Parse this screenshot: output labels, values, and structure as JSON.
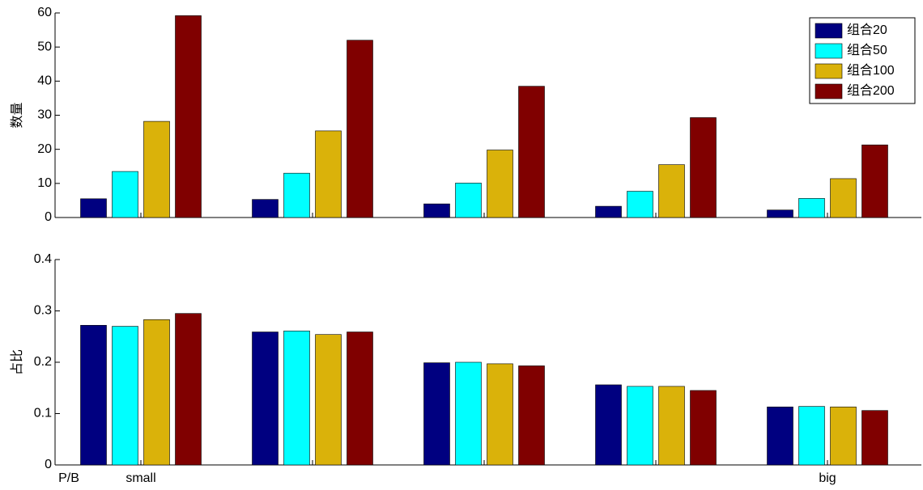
{
  "chart_data": [
    {
      "type": "bar",
      "ylabel": "数量",
      "categories": [
        null,
        null,
        null,
        null,
        null
      ],
      "series": [
        {
          "name": "组合20",
          "color": "#000080",
          "values": [
            5.5,
            5.3,
            4.0,
            3.3,
            2.2
          ]
        },
        {
          "name": "组合50",
          "color": "#00ffff",
          "values": [
            13.5,
            13.0,
            10.1,
            7.7,
            5.6
          ]
        },
        {
          "name": "组合100",
          "color": "#dab20a",
          "values": [
            28.2,
            25.4,
            19.8,
            15.5,
            11.4
          ]
        },
        {
          "name": "组合200",
          "color": "#800000",
          "values": [
            59.2,
            52.0,
            38.5,
            29.3,
            21.3
          ]
        }
      ],
      "ylim": [
        0,
        60
      ],
      "yticks": [
        0,
        10,
        20,
        30,
        40,
        50,
        60
      ],
      "legend": "upper right"
    },
    {
      "type": "bar",
      "ylabel": "占比",
      "xlabel": "P/B",
      "categories": [
        "small",
        null,
        null,
        null,
        "big"
      ],
      "series": [
        {
          "color": "#000080",
          "values": [
            0.272,
            0.259,
            0.199,
            0.156,
            0.113
          ]
        },
        {
          "color": "#00ffff",
          "values": [
            0.27,
            0.261,
            0.2,
            0.153,
            0.114
          ]
        },
        {
          "color": "#dab20a",
          "values": [
            0.283,
            0.254,
            0.197,
            0.153,
            0.113
          ]
        },
        {
          "color": "#800000",
          "values": [
            0.295,
            0.259,
            0.193,
            0.145,
            0.106
          ]
        }
      ],
      "ylim": [
        0,
        0.4
      ],
      "yticks": [
        0,
        0.1,
        0.2,
        0.3,
        0.4
      ]
    }
  ]
}
